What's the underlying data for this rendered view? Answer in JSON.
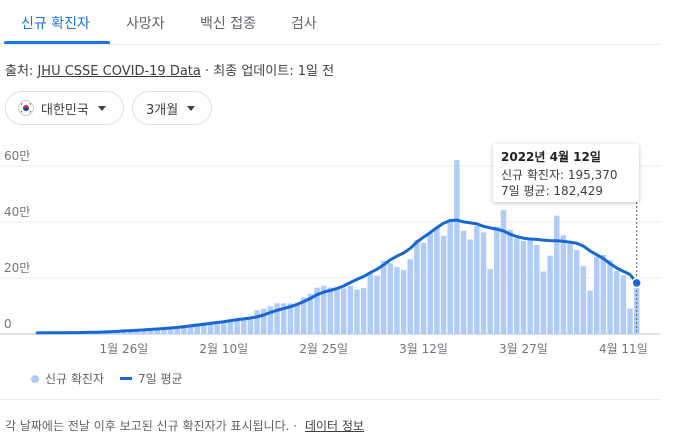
{
  "tabs": [
    {
      "label": "신규 확진자",
      "active": true
    },
    {
      "label": "사망자",
      "active": false
    },
    {
      "label": "백신 접종",
      "active": false
    },
    {
      "label": "검사",
      "active": false
    }
  ],
  "source": {
    "prefix": "출처:",
    "link": "JHU CSSE COVID-19 Data",
    "separator": "·",
    "updated": "최종 업데이트: 1일 전"
  },
  "filters": {
    "country": {
      "label": "대한민국",
      "icon": "korea-flag-icon"
    },
    "period": {
      "label": "3개월"
    }
  },
  "tooltip": {
    "date": "2022년 4월 12일",
    "cases_line": "신규 확진자: 195,370",
    "avg_line": "7일 평균: 182,429"
  },
  "legend": {
    "bars": "신규 확진자",
    "line": "7일 평균"
  },
  "footer": {
    "note": "각 날짜에는 전날 이후 보고된 신규 확진자가 표시됩니다.",
    "separator": "·",
    "link": "데이터 정보"
  },
  "colors": {
    "bar": "#aecbfa",
    "line": "#1967d2",
    "accent": "#1a73e8"
  },
  "chart_data": {
    "type": "bar",
    "x_start": "2022-01-13",
    "x_end": "2022-04-12",
    "ylim": [
      0,
      60
    ],
    "y_unit": "만",
    "y_ticks": [
      "0",
      "20만",
      "40만",
      "60만"
    ],
    "x_ticks": [
      {
        "label": "1월 26일",
        "date": "2022-01-26"
      },
      {
        "label": "2월 10일",
        "date": "2022-02-10"
      },
      {
        "label": "2월 25일",
        "date": "2022-02-25"
      },
      {
        "label": "3월 12일",
        "date": "2022-03-12"
      },
      {
        "label": "3월 27일",
        "date": "2022-03-27"
      },
      {
        "label": "4월 11일",
        "date": "2022-04-11"
      }
    ],
    "series": [
      {
        "name": "신규 확진자",
        "values": [
          0.43,
          0.47,
          0.5,
          0.46,
          0.43,
          0.52,
          0.62,
          0.68,
          0.75,
          0.84,
          0.98,
          1.15,
          1.3,
          1.36,
          1.4,
          1.61,
          1.81,
          2.05,
          2.28,
          2.44,
          2.59,
          2.87,
          3.12,
          3.43,
          3.84,
          4.07,
          4.43,
          4.69,
          4.63,
          5.03,
          5.23,
          5.14,
          5.53,
          8.44,
          9.07,
          9.85,
          10.97,
          10.93,
          10.92,
          10.49,
          13.05,
          14.32,
          16.56,
          17.23,
          16.61,
          16.35,
          16.27,
          17.1,
          15.85,
          16.38,
          21.56,
          20.81,
          26.18,
          25.27,
          23.89,
          22.79,
          26.68,
          33.55,
          32.52,
          36.12,
          37.82,
          35.08,
          40.45,
          62.12,
          36.9,
          33.77,
          38.53,
          36.28,
          23.23,
          38.32,
          44.31,
          37.23,
          34.19,
          33.23,
          33.37,
          31.81,
          22.33,
          27.99,
          42.28,
          35.23,
          32.39,
          29.99,
          24.31,
          15.49,
          27.65,
          28.19,
          26.36,
          22.48,
          20.99,
          9.09,
          19.54
        ]
      },
      {
        "name": "7일 평균",
        "values": [
          0.4,
          0.42,
          0.45,
          0.47,
          0.48,
          0.49,
          0.51,
          0.55,
          0.59,
          0.64,
          0.72,
          0.82,
          0.94,
          1.09,
          1.22,
          1.34,
          1.48,
          1.64,
          1.79,
          1.96,
          2.15,
          2.37,
          2.6,
          2.88,
          3.18,
          3.47,
          3.77,
          4.09,
          4.4,
          4.77,
          5.15,
          5.41,
          5.73,
          6.16,
          6.79,
          7.73,
          8.48,
          9.12,
          9.76,
          10.57,
          11.58,
          12.72,
          14.04,
          14.98,
          15.58,
          16.27,
          17.15,
          18.38,
          19.49,
          20.55,
          21.91,
          23.14,
          24.69,
          26.49,
          27.8,
          28.92,
          30.6,
          32.85,
          34.6,
          36.2,
          38.01,
          39.53,
          40.54,
          40.69,
          40.05,
          39.69,
          39.31,
          38.47,
          37.89,
          37.48,
          36.78,
          35.64,
          34.78,
          34.22,
          33.94,
          33.79,
          33.53,
          33.35,
          33.33,
          33.12,
          32.77,
          32.42,
          31.39,
          29.66,
          28.31,
          26.92,
          25.16,
          23.57,
          22.35,
          21.25,
          18.24
        ]
      }
    ]
  }
}
